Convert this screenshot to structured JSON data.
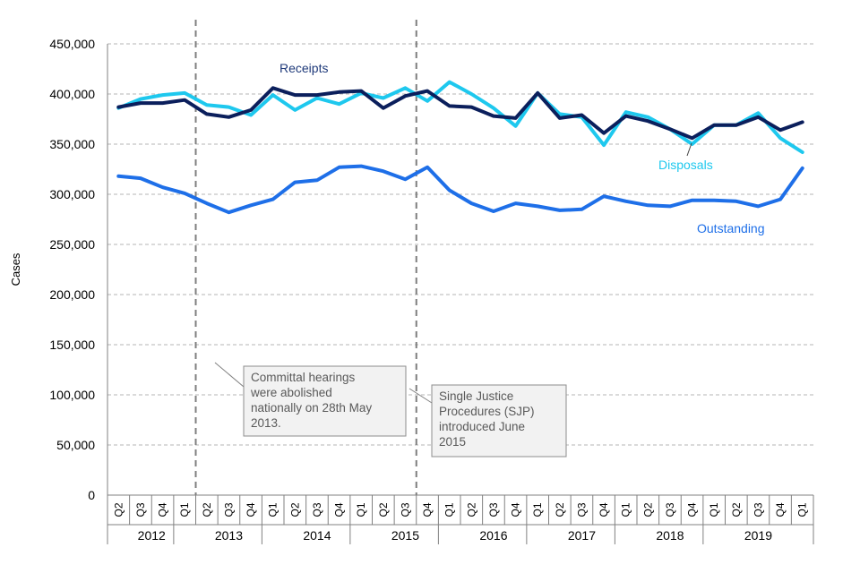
{
  "chart_data": {
    "type": "line",
    "title": "",
    "xlabel": "",
    "ylabel": "Cases",
    "ylim": [
      0,
      450000
    ],
    "yticks": [
      "0",
      "50,000",
      "100,000",
      "150,000",
      "200,000",
      "250,000",
      "300,000",
      "350,000",
      "400,000",
      "450,000"
    ],
    "grid": true,
    "quarters": [
      "Q2",
      "Q3",
      "Q4",
      "Q1",
      "Q2",
      "Q3",
      "Q4",
      "Q1",
      "Q2",
      "Q3",
      "Q4",
      "Q1",
      "Q2",
      "Q3",
      "Q4",
      "Q1",
      "Q2",
      "Q3",
      "Q4",
      "Q1",
      "Q2",
      "Q3",
      "Q4",
      "Q1",
      "Q2",
      "Q3",
      "Q4",
      "Q1",
      "Q2",
      "Q3",
      "Q4",
      "Q1"
    ],
    "years": [
      {
        "label": "2012",
        "start": 0,
        "end": 3
      },
      {
        "label": "2013",
        "start": 3,
        "end": 7
      },
      {
        "label": "2014",
        "start": 7,
        "end": 11
      },
      {
        "label": "2015",
        "start": 11,
        "end": 15
      },
      {
        "label": "2016",
        "start": 15,
        "end": 19
      },
      {
        "label": "2017",
        "start": 19,
        "end": 23
      },
      {
        "label": "2018",
        "start": 23,
        "end": 27
      },
      {
        "label": "2019",
        "start": 27,
        "end": 31
      }
    ],
    "series": [
      {
        "name": "Receipts",
        "color": "#0b1f5c",
        "values": [
          387000,
          391000,
          391000,
          394000,
          380000,
          377000,
          384000,
          406000,
          399000,
          399000,
          402000,
          403000,
          386000,
          398000,
          403000,
          388000,
          387000,
          378000,
          376000,
          401000,
          376000,
          379000,
          361000,
          378000,
          373000,
          365000,
          356000,
          369000,
          369000,
          377000,
          364000,
          372000
        ]
      },
      {
        "name": "Disposals",
        "color": "#1ec8ee",
        "values": [
          386000,
          395000,
          399000,
          401000,
          389000,
          387000,
          379000,
          399000,
          384000,
          396000,
          390000,
          401000,
          396000,
          406000,
          393000,
          412000,
          400000,
          386000,
          368000,
          401000,
          380000,
          377000,
          349000,
          382000,
          377000,
          365000,
          350000,
          369000,
          369000,
          381000,
          356000,
          342000
        ]
      },
      {
        "name": "Outstanding",
        "color": "#1e6fe8",
        "values": [
          318000,
          316000,
          307000,
          301000,
          291000,
          282000,
          289000,
          295000,
          312000,
          314000,
          327000,
          328000,
          323000,
          315000,
          327000,
          304000,
          291000,
          283000,
          291000,
          288000,
          284000,
          285000,
          298000,
          293000,
          289000,
          288000,
          294000,
          294000,
          293000,
          288000,
          295000,
          326000
        ]
      }
    ],
    "annotations": [
      {
        "text": [
          "Committal hearings",
          "were abolished",
          "nationally on 28th May",
          "2013."
        ],
        "quarter_index": 4
      },
      {
        "text": [
          "Single Justice",
          "Procedures (SJP)",
          "introduced June",
          "2015"
        ],
        "quarter_index": 13.5
      }
    ]
  }
}
